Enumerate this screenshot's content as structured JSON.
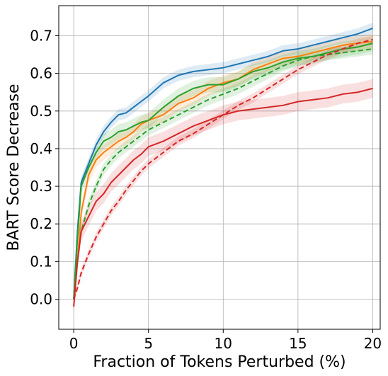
{
  "chart_data": {
    "type": "line",
    "title": "",
    "xlabel": "Fraction of Tokens Perturbed (%)",
    "ylabel": "BART Score Decrease",
    "xlim": [
      -1,
      20.5
    ],
    "ylim": [
      -0.08,
      0.78
    ],
    "xticks": [
      "0",
      "5",
      "10",
      "15",
      "20"
    ],
    "yticks": [
      "0.0",
      "0.1",
      "0.2",
      "0.3",
      "0.4",
      "0.5",
      "0.6",
      "0.7"
    ],
    "grid": true,
    "legend": "none",
    "series": [
      {
        "color": "#1f77b4",
        "style": "solid",
        "x": [
          0,
          0.25,
          0.5,
          1,
          1.5,
          2,
          2.5,
          3,
          3.5,
          4,
          4.5,
          5,
          6,
          7,
          8,
          9,
          10,
          11,
          12,
          13,
          14,
          15,
          16,
          17,
          18,
          19,
          20
        ],
        "y": [
          0.0,
          0.18,
          0.31,
          0.36,
          0.41,
          0.445,
          0.47,
          0.49,
          0.495,
          0.51,
          0.525,
          0.54,
          0.575,
          0.595,
          0.605,
          0.61,
          0.615,
          0.625,
          0.635,
          0.645,
          0.66,
          0.665,
          0.675,
          0.685,
          0.695,
          0.705,
          0.72
        ],
        "band": 0.015
      },
      {
        "color": "#ff7f0e",
        "style": "solid",
        "x": [
          0,
          0.25,
          0.5,
          1,
          1.5,
          2,
          2.5,
          3,
          3.5,
          4,
          4.5,
          5,
          6,
          7,
          8,
          9,
          10,
          11,
          12,
          13,
          14,
          15,
          16,
          17,
          18,
          19,
          20
        ],
        "y": [
          0.0,
          0.1,
          0.23,
          0.33,
          0.37,
          0.39,
          0.405,
          0.42,
          0.43,
          0.445,
          0.465,
          0.475,
          0.49,
          0.52,
          0.535,
          0.56,
          0.575,
          0.585,
          0.61,
          0.625,
          0.64,
          0.645,
          0.655,
          0.665,
          0.675,
          0.68,
          0.685
        ],
        "band": 0.02
      },
      {
        "color": "#2ca02c",
        "style": "solid",
        "x": [
          0,
          0.25,
          0.5,
          1,
          1.5,
          2,
          2.5,
          3,
          3.5,
          4,
          4.5,
          5,
          6,
          7,
          8,
          9,
          10,
          11,
          12,
          13,
          14,
          15,
          16,
          17,
          18,
          19,
          20
        ],
        "y": [
          0.0,
          0.16,
          0.3,
          0.35,
          0.39,
          0.42,
          0.43,
          0.445,
          0.45,
          0.46,
          0.47,
          0.475,
          0.51,
          0.54,
          0.56,
          0.57,
          0.57,
          0.585,
          0.605,
          0.615,
          0.63,
          0.64,
          0.645,
          0.655,
          0.665,
          0.67,
          0.68
        ],
        "band": 0.02
      },
      {
        "color": "#2ca02c",
        "style": "dashed",
        "x": [
          0,
          0.25,
          0.5,
          1,
          1.5,
          2,
          2.5,
          3,
          3.5,
          4,
          4.5,
          5,
          6,
          7,
          8,
          9,
          10,
          11,
          12,
          13,
          14,
          15,
          16,
          17,
          18,
          19,
          20
        ],
        "y": [
          0.0,
          0.1,
          0.18,
          0.25,
          0.3,
          0.345,
          0.37,
          0.39,
          0.405,
          0.42,
          0.435,
          0.45,
          0.47,
          0.49,
          0.51,
          0.53,
          0.545,
          0.56,
          0.58,
          0.6,
          0.62,
          0.635,
          0.645,
          0.65,
          0.655,
          0.66,
          0.665
        ],
        "band": 0.015
      },
      {
        "color": "#d62728",
        "style": "dashed",
        "x": [
          0,
          0.25,
          0.5,
          1,
          1.5,
          2,
          2.5,
          3,
          3.5,
          4,
          4.5,
          5,
          6,
          7,
          8,
          9,
          10,
          11,
          12,
          13,
          14,
          15,
          16,
          17,
          18,
          19,
          20
        ],
        "y": [
          0.0,
          0.03,
          0.07,
          0.12,
          0.165,
          0.2,
          0.235,
          0.26,
          0.29,
          0.315,
          0.34,
          0.36,
          0.39,
          0.42,
          0.44,
          0.465,
          0.49,
          0.515,
          0.535,
          0.56,
          0.585,
          0.61,
          0.63,
          0.65,
          0.665,
          0.68,
          0.69
        ],
        "band": 0.012
      },
      {
        "color": "#d62728",
        "style": "solid",
        "x": [
          0,
          0.25,
          0.5,
          1,
          1.5,
          2,
          2.5,
          3,
          3.5,
          4,
          4.5,
          5,
          6,
          7,
          8,
          9,
          10,
          11,
          12,
          13,
          14,
          15,
          16,
          17,
          18,
          19,
          20
        ],
        "y": [
          -0.02,
          0.1,
          0.18,
          0.22,
          0.26,
          0.28,
          0.31,
          0.33,
          0.35,
          0.37,
          0.385,
          0.405,
          0.42,
          0.44,
          0.46,
          0.475,
          0.49,
          0.5,
          0.505,
          0.51,
          0.515,
          0.525,
          0.53,
          0.535,
          0.545,
          0.55,
          0.56
        ],
        "band": 0.025
      }
    ]
  }
}
